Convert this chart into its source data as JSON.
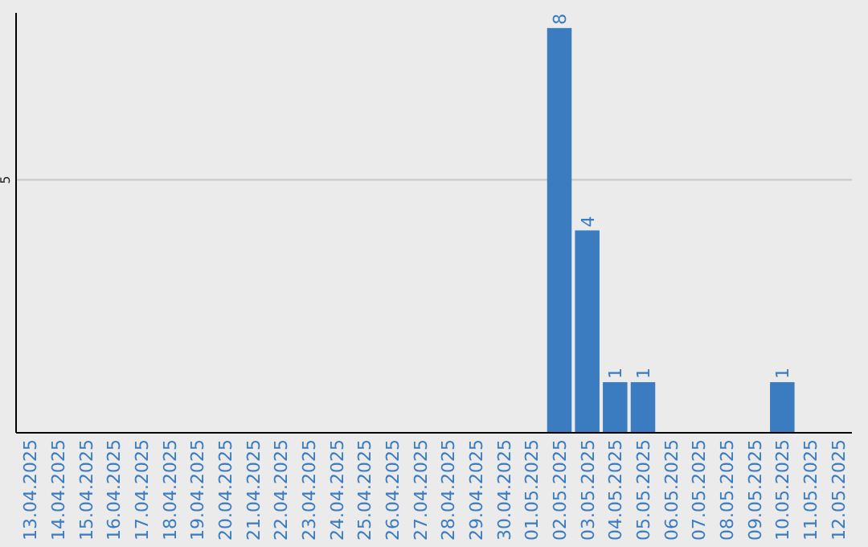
{
  "chart_data": {
    "type": "bar",
    "categories": [
      "13.04.2025",
      "14.04.2025",
      "15.04.2025",
      "16.04.2025",
      "17.04.2025",
      "18.04.2025",
      "19.04.2025",
      "20.04.2025",
      "21.04.2025",
      "22.04.2025",
      "23.04.2025",
      "24.04.2025",
      "25.04.2025",
      "26.04.2025",
      "27.04.2025",
      "28.04.2025",
      "29.04.2025",
      "30.04.2025",
      "01.05.2025",
      "02.05.2025",
      "03.05.2025",
      "04.05.2025",
      "05.05.2025",
      "06.05.2025",
      "07.05.2025",
      "08.05.2025",
      "09.05.2025",
      "10.05.2025",
      "11.05.2025",
      "12.05.2025"
    ],
    "values": [
      null,
      null,
      null,
      null,
      null,
      null,
      null,
      null,
      null,
      null,
      null,
      null,
      null,
      null,
      null,
      null,
      null,
      null,
      null,
      8,
      4,
      1,
      1,
      null,
      null,
      null,
      null,
      1,
      null,
      null
    ],
    "value_labels": [
      null,
      null,
      null,
      null,
      null,
      null,
      null,
      null,
      null,
      null,
      null,
      null,
      null,
      null,
      null,
      null,
      null,
      null,
      null,
      "8",
      "4",
      "1",
      "1",
      null,
      null,
      null,
      null,
      "1",
      null,
      null
    ],
    "color": "#3b7bbf",
    "ylim": [
      0,
      8.3
    ],
    "yticks": [
      5
    ],
    "grid": "y"
  }
}
